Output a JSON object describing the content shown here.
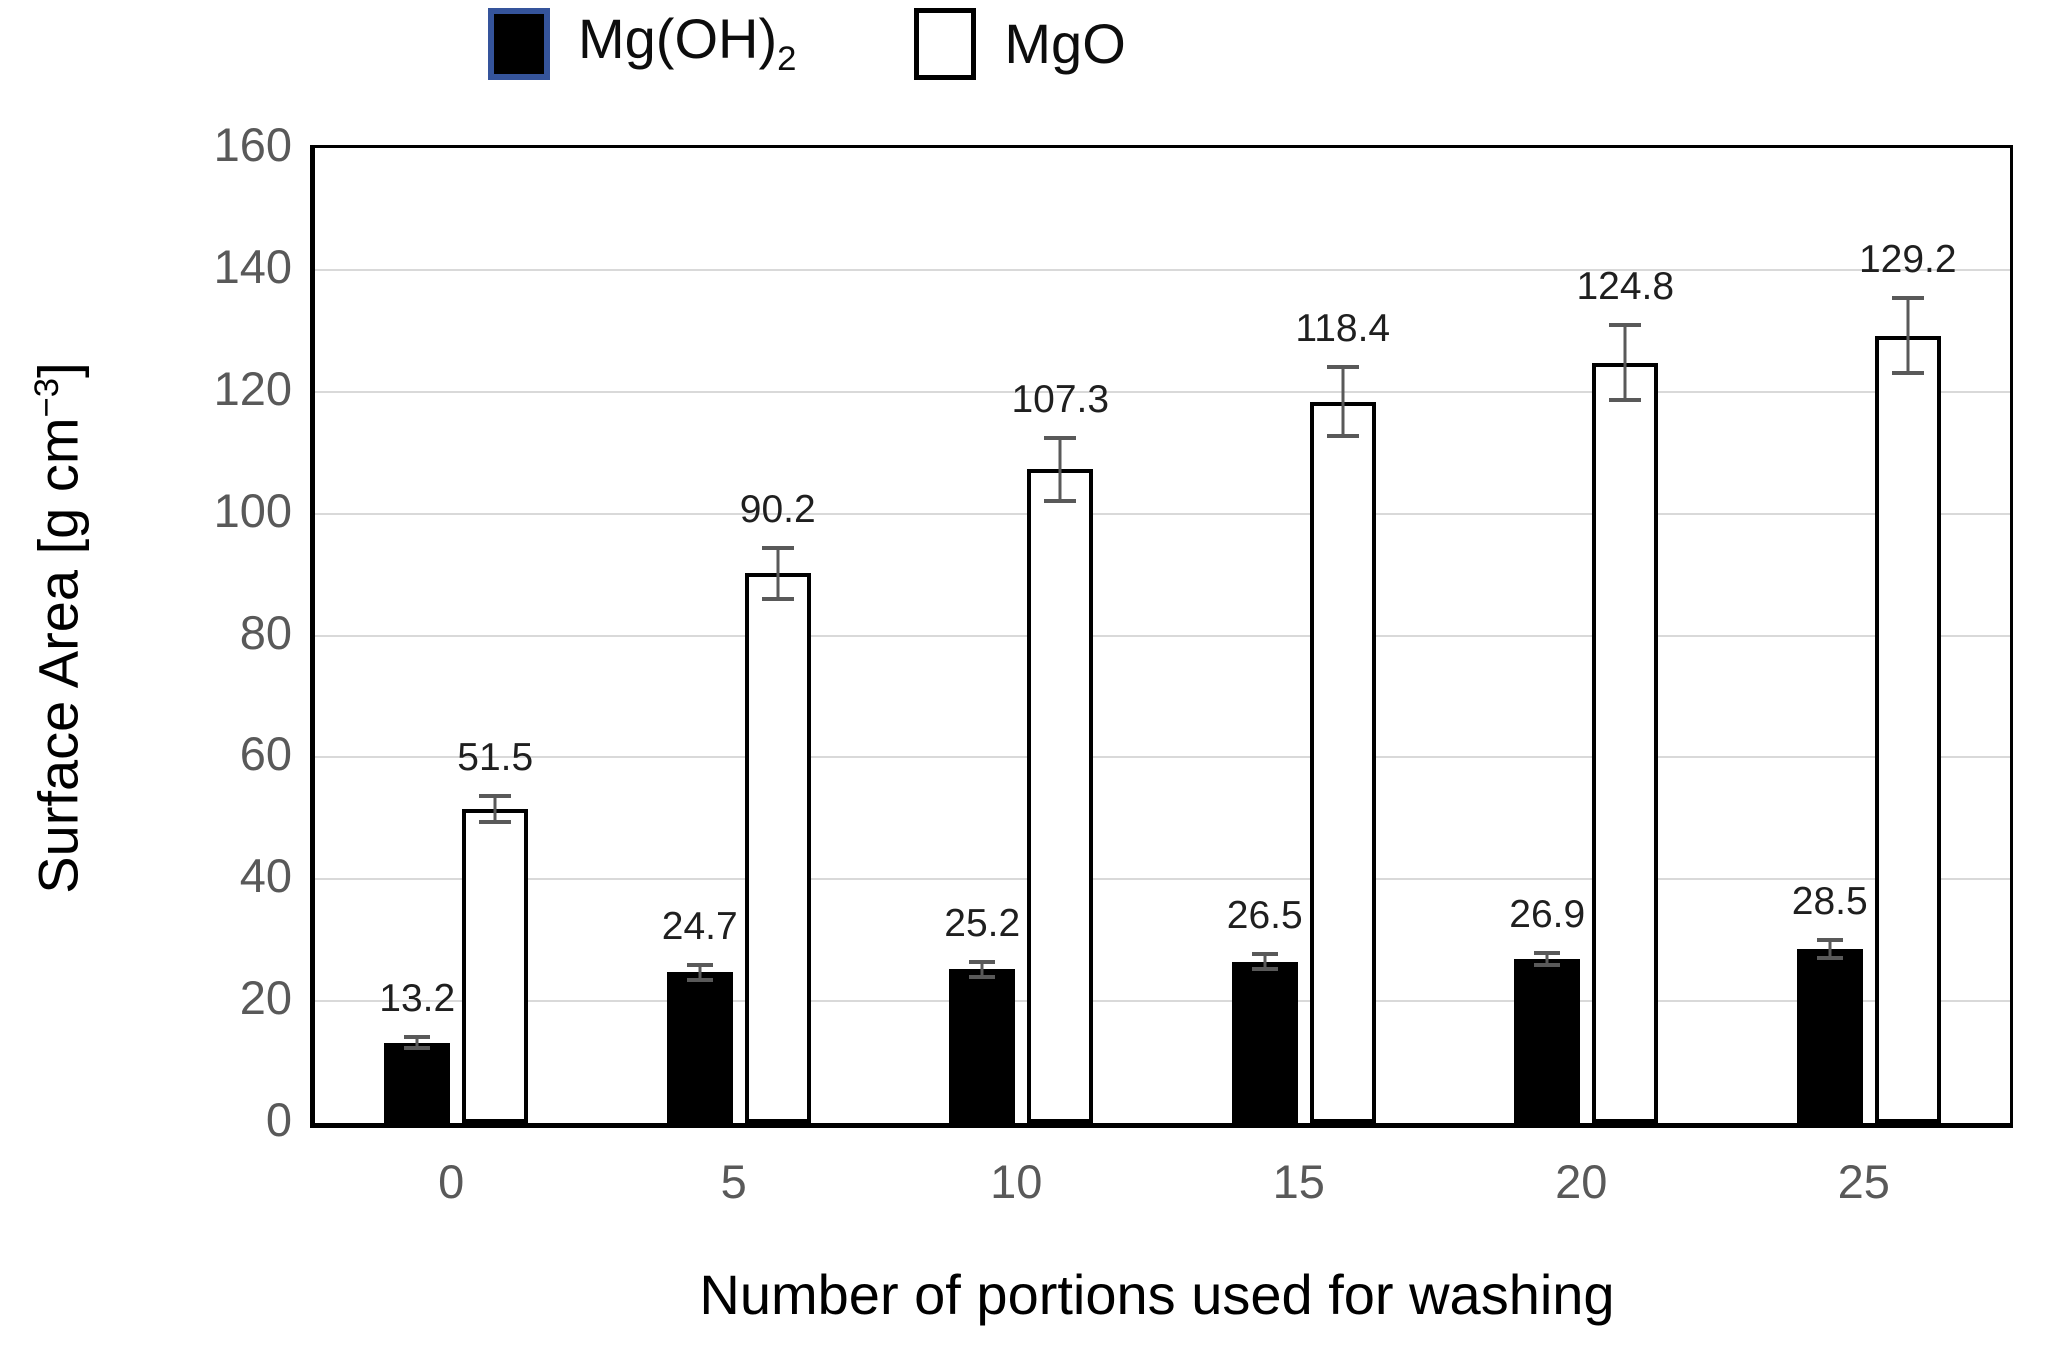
{
  "chart_data": {
    "type": "bar",
    "title": "",
    "categories": [
      "0",
      "5",
      "10",
      "15",
      "20",
      "25"
    ],
    "series": [
      {
        "name": "Mg(OH)2",
        "label_main": "Mg(OH)",
        "label_sub": "2",
        "values": [
          13.2,
          24.7,
          25.2,
          26.5,
          26.9,
          28.5
        ],
        "errors": [
          1.2,
          1.5,
          1.5,
          1.5,
          1.3,
          1.8
        ],
        "fill": "#000000",
        "stroke": "#000000"
      },
      {
        "name": "MgO",
        "label_main": "MgO",
        "label_sub": "",
        "values": [
          51.5,
          90.2,
          107.3,
          118.4,
          124.8,
          129.2
        ],
        "errors": [
          2.5,
          4.5,
          5.5,
          6.0,
          6.5,
          6.5
        ],
        "fill": "#ffffff",
        "stroke": "#000000"
      }
    ],
    "xlabel": "Number of portions used for washing",
    "ylabel": {
      "prefix": "Surface Area [g cm",
      "sup": "−3",
      "suffix": "]"
    },
    "ylim": [
      0,
      160
    ],
    "ytick_step": 20,
    "grid": true,
    "legend_position": "top",
    "colors": {
      "gridline": "#d9d9d9",
      "axis": "#000000",
      "tick_label": "#595959",
      "data_label": "#1f1f1f",
      "error_bar": "#595959",
      "legend_selected_border": "#35549b"
    }
  }
}
